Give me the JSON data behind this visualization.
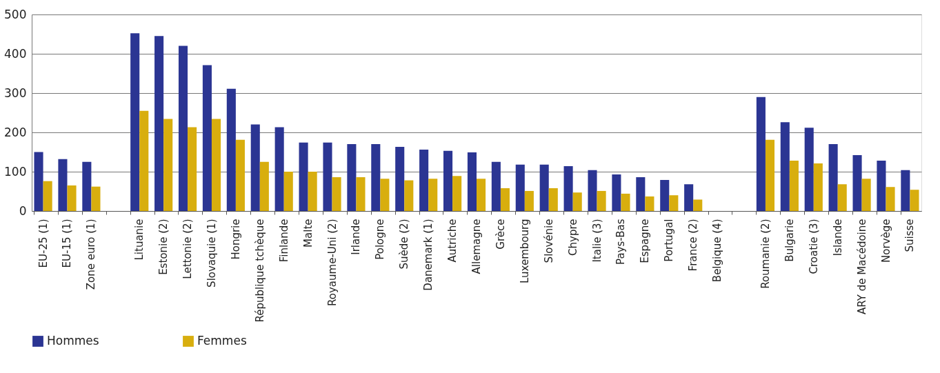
{
  "chart_data": {
    "type": "bar",
    "categories": [
      "EU-25 (1)",
      "EU-15 (1)",
      "Zone euro (1)",
      null,
      "Lituanie",
      "Estonie (2)",
      "Lettonie (2)",
      "Slovaquie (1)",
      "Hongrie",
      "République tchèque",
      "Finlande",
      "Malte",
      "Royaume-Uni (2)",
      "Irlande",
      "Pologne",
      "Suède (2)",
      "Danemark (1)",
      "Autriche",
      "Allemagne",
      "Grèce",
      "Luxembourg",
      "Slovénie",
      "Chypre",
      "Italie (3)",
      "Pays-Bas",
      "Espagne",
      "Portugal",
      "France (2)",
      "Belgique (4)",
      null,
      "Roumanie (2)",
      "Bulgarie",
      "Croatie (3)",
      "Islande",
      "ARY de Macédoine",
      "Norvège",
      "Suisse"
    ],
    "series": [
      {
        "name": "Hommes",
        "color": "#2b3593",
        "values": [
          150,
          132,
          125,
          null,
          452,
          445,
          420,
          371,
          311,
          220,
          213,
          174,
          174,
          170,
          170,
          163,
          156,
          153,
          149,
          125,
          118,
          118,
          114,
          104,
          93,
          86,
          79,
          68,
          null,
          null,
          290,
          226,
          212,
          170,
          142,
          128,
          104
        ]
      },
      {
        "name": "Femmes",
        "color": "#d8ae0e",
        "values": [
          76,
          65,
          62,
          null,
          255,
          234,
          213,
          234,
          181,
          125,
          100,
          100,
          86,
          86,
          82,
          78,
          82,
          89,
          82,
          58,
          51,
          58,
          47,
          51,
          44,
          37,
          40,
          29,
          null,
          null,
          181,
          128,
          121,
          68,
          82,
          61,
          54
        ]
      }
    ],
    "ylim": [
      0,
      500
    ],
    "yticks": [
      0,
      100,
      200,
      300,
      400,
      500
    ],
    "grid": "y",
    "legend": "bottom"
  }
}
